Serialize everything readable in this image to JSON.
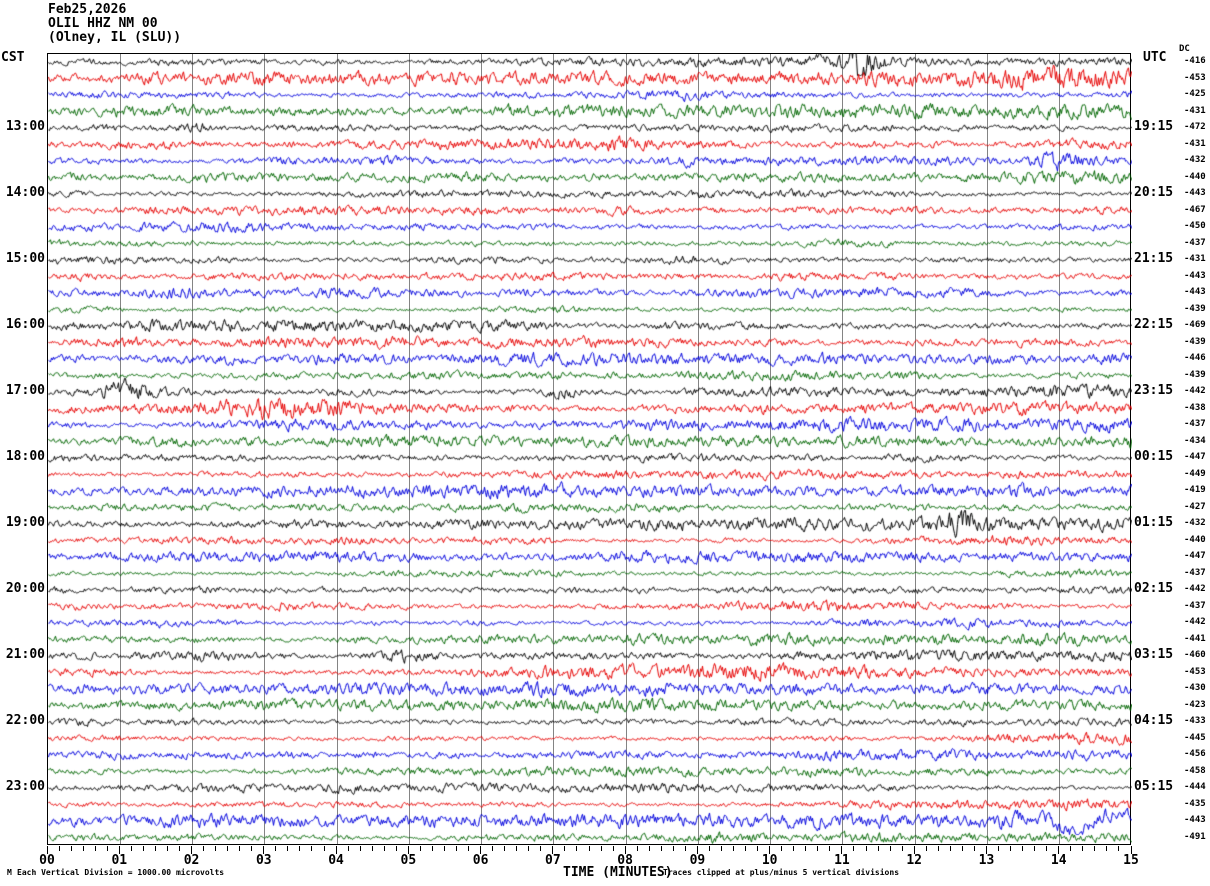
{
  "header": {
    "date": "Feb25,2026",
    "station": "OLIL HHZ NM 00",
    "location": "(Olney, IL (SLU))"
  },
  "axis": {
    "left_timezone": "CST",
    "right_timezone": "UTC",
    "dc_column_label": "DC",
    "x_title": "TIME (MINUTES)",
    "x_ticks": [
      "00",
      "01",
      "02",
      "03",
      "04",
      "05",
      "06",
      "07",
      "08",
      "09",
      "10",
      "11",
      "12",
      "13",
      "14",
      "15"
    ]
  },
  "footer": {
    "glyph": "M",
    "left_note": "Each Vertical Division = 1000.00 microvolts",
    "right_note": "Traces clipped at plus/minus 5 vertical divisions"
  },
  "colors": {
    "trace_cycle": [
      "#000000",
      "#e60000",
      "#0000dd",
      "#006600"
    ],
    "grid": "#848484",
    "border": "#000000",
    "background": "#ffffff"
  },
  "chart_data": {
    "type": "line",
    "subtype": "helicorder-seismogram",
    "title": "OLIL HHZ NM 00 (Olney, IL (SLU)) Feb25,2026",
    "xlabel": "TIME (MINUTES)",
    "x_range_minutes": [
      0,
      15
    ],
    "minutes_per_row": 15,
    "row_color_order": [
      "black",
      "red",
      "blue",
      "green"
    ],
    "vertical_division_microvolts": 1000.0,
    "clip_divisions": 5,
    "rows": [
      {
        "cst": "",
        "utc": "",
        "dc": -416,
        "color": "black"
      },
      {
        "cst": "",
        "utc": "",
        "dc": -453,
        "color": "red"
      },
      {
        "cst": "",
        "utc": "",
        "dc": -425,
        "color": "blue"
      },
      {
        "cst": "",
        "utc": "",
        "dc": -431,
        "color": "green"
      },
      {
        "cst": "13:00",
        "utc": "19:15",
        "dc": -472,
        "color": "black"
      },
      {
        "cst": "",
        "utc": "",
        "dc": -431,
        "color": "red"
      },
      {
        "cst": "",
        "utc": "",
        "dc": -432,
        "color": "blue"
      },
      {
        "cst": "",
        "utc": "",
        "dc": -440,
        "color": "green"
      },
      {
        "cst": "14:00",
        "utc": "20:15",
        "dc": -443,
        "color": "black"
      },
      {
        "cst": "",
        "utc": "",
        "dc": -467,
        "color": "red"
      },
      {
        "cst": "",
        "utc": "",
        "dc": -450,
        "color": "blue"
      },
      {
        "cst": "",
        "utc": "",
        "dc": -437,
        "color": "green"
      },
      {
        "cst": "15:00",
        "utc": "21:15",
        "dc": -431,
        "color": "black"
      },
      {
        "cst": "",
        "utc": "",
        "dc": -443,
        "color": "red"
      },
      {
        "cst": "",
        "utc": "",
        "dc": -443,
        "color": "blue"
      },
      {
        "cst": "",
        "utc": "",
        "dc": -439,
        "color": "green"
      },
      {
        "cst": "16:00",
        "utc": "22:15",
        "dc": -469,
        "color": "black"
      },
      {
        "cst": "",
        "utc": "",
        "dc": -439,
        "color": "red"
      },
      {
        "cst": "",
        "utc": "",
        "dc": -446,
        "color": "blue"
      },
      {
        "cst": "",
        "utc": "",
        "dc": -439,
        "color": "green"
      },
      {
        "cst": "17:00",
        "utc": "23:15",
        "dc": -442,
        "color": "black"
      },
      {
        "cst": "",
        "utc": "",
        "dc": -438,
        "color": "red"
      },
      {
        "cst": "",
        "utc": "",
        "dc": -437,
        "color": "blue"
      },
      {
        "cst": "",
        "utc": "",
        "dc": -434,
        "color": "green"
      },
      {
        "cst": "18:00",
        "utc": "00:15",
        "dc": -447,
        "color": "black"
      },
      {
        "cst": "",
        "utc": "",
        "dc": -449,
        "color": "red"
      },
      {
        "cst": "",
        "utc": "",
        "dc": -419,
        "color": "blue"
      },
      {
        "cst": "",
        "utc": "",
        "dc": -427,
        "color": "green"
      },
      {
        "cst": "19:00",
        "utc": "01:15",
        "dc": -432,
        "color": "black"
      },
      {
        "cst": "",
        "utc": "",
        "dc": -440,
        "color": "red"
      },
      {
        "cst": "",
        "utc": "",
        "dc": -447,
        "color": "blue"
      },
      {
        "cst": "",
        "utc": "",
        "dc": -437,
        "color": "green"
      },
      {
        "cst": "20:00",
        "utc": "02:15",
        "dc": -442,
        "color": "black"
      },
      {
        "cst": "",
        "utc": "",
        "dc": -437,
        "color": "red"
      },
      {
        "cst": "",
        "utc": "",
        "dc": -442,
        "color": "blue"
      },
      {
        "cst": "",
        "utc": "",
        "dc": -441,
        "color": "green"
      },
      {
        "cst": "21:00",
        "utc": "03:15",
        "dc": -460,
        "color": "black"
      },
      {
        "cst": "",
        "utc": "",
        "dc": -453,
        "color": "red"
      },
      {
        "cst": "",
        "utc": "",
        "dc": -430,
        "color": "blue"
      },
      {
        "cst": "",
        "utc": "",
        "dc": -423,
        "color": "green"
      },
      {
        "cst": "22:00",
        "utc": "04:15",
        "dc": -433,
        "color": "black"
      },
      {
        "cst": "",
        "utc": "",
        "dc": -445,
        "color": "red"
      },
      {
        "cst": "",
        "utc": "",
        "dc": -456,
        "color": "blue"
      },
      {
        "cst": "",
        "utc": "",
        "dc": -458,
        "color": "green"
      },
      {
        "cst": "23:00",
        "utc": "05:15",
        "dc": -444,
        "color": "black"
      },
      {
        "cst": "",
        "utc": "",
        "dc": -435,
        "color": "red"
      },
      {
        "cst": "",
        "utc": "",
        "dc": -443,
        "color": "blue"
      },
      {
        "cst": "",
        "utc": "",
        "dc": -491,
        "color": "green"
      }
    ],
    "events": [
      {
        "row": 1,
        "pos": 0.748,
        "sigma": 0.006,
        "gain": 7.0,
        "type": "burst"
      },
      {
        "row": 1,
        "pos": 0.74,
        "sigma": 0.03,
        "gain": 1.8,
        "type": "burst"
      },
      {
        "row": 2,
        "pos": 0.93,
        "sigma": 0.05,
        "gain": 1.7,
        "type": "burst"
      },
      {
        "row": 5,
        "pos": 0.135,
        "sigma": 0.018,
        "gain": 2.4,
        "type": "burst"
      },
      {
        "row": 6,
        "pos": 0.5,
        "sigma": 0.11,
        "gain": 2.2,
        "type": "burst"
      },
      {
        "row": 7,
        "pos": 0.935,
        "sigma": 0.018,
        "gain": 2.6,
        "type": "burst"
      },
      {
        "row": 13,
        "pos": 0.6,
        "sigma": 0.025,
        "gain": 2.5,
        "type": "burst"
      },
      {
        "row": 14,
        "pos": 0.78,
        "sigma": 0.06,
        "gain": 1.8,
        "type": "burst"
      },
      {
        "row": 17,
        "pos": 0.5,
        "sigma": 0.35,
        "gain": 1.25,
        "type": "burst"
      },
      {
        "row": 21,
        "pos": 0.072,
        "sigma": 0.015,
        "gain": 3.0,
        "type": "burst"
      },
      {
        "row": 21,
        "pos": 0.475,
        "sigma": 0.009,
        "gain": 2.2,
        "type": "burst"
      },
      {
        "row": 22,
        "pos": 0.24,
        "sigma": 0.09,
        "gain": 2.0,
        "type": "burst"
      },
      {
        "row": 29,
        "pos": 0.845,
        "sigma": 0.012,
        "gain": 2.2,
        "type": "burst"
      },
      {
        "row": 37,
        "pos": 0.335,
        "sigma": 0.02,
        "gain": 2.7,
        "type": "burst"
      },
      {
        "row": 38,
        "pos": 0.62,
        "sigma": 0.12,
        "gain": 1.6,
        "type": "burst"
      },
      {
        "row": 46,
        "pos": 0.955,
        "sigma": 0.02,
        "gain": 1.9,
        "type": "burst"
      },
      {
        "row": 47,
        "pos": 0.955,
        "sigma": 0.05,
        "gain": 2.8,
        "type": "slow"
      },
      {
        "row": 48,
        "pos": 0.93,
        "sigma": 0.09,
        "gain": 1.7,
        "type": "burst"
      }
    ]
  }
}
